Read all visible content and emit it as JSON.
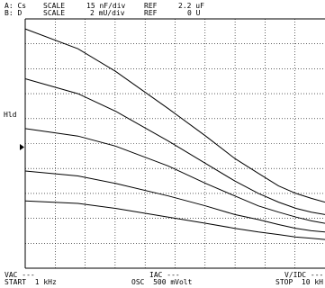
{
  "header": {
    "row_a": {
      "prefix": "A: Cs",
      "scale_label": "SCALE",
      "scale_value": "15 nF/div",
      "ref_label": "REF",
      "ref_value": "2.2 uF"
    },
    "row_b": {
      "prefix": "B: D",
      "scale_label": "SCALE",
      "scale_value": "2 mU/div",
      "ref_label": "REF",
      "ref_value": "0 U"
    }
  },
  "marker": {
    "label": "Hld"
  },
  "footer": {
    "vac": "VAC ---",
    "iac": "IAC ---",
    "vidc": "V/IDC ---",
    "start": "START  1 kHz",
    "osc": "OSC  500 mVolt",
    "stop": "STOP  10 kH"
  },
  "colors": {
    "background": "#ffffff",
    "trace": "#000000",
    "grid": "#000000"
  },
  "chart_data": {
    "type": "line",
    "title": "",
    "xlabel": "",
    "ylabel": "",
    "xlim": [
      1,
      10
    ],
    "x_unit": "kHz",
    "grid": true,
    "grid_style": "dotted",
    "series": [
      {
        "x": [
          1,
          1.5,
          2,
          3,
          4,
          5,
          6,
          7,
          8,
          9,
          10
        ],
        "y": [
          9.6,
          8.8,
          7.9,
          6.4,
          5.3,
          4.4,
          3.8,
          3.3,
          3.0,
          2.8,
          2.65
        ]
      },
      {
        "x": [
          1,
          1.5,
          2,
          3,
          4,
          5,
          6,
          7,
          8,
          9,
          10
        ],
        "y": [
          7.6,
          7.0,
          6.3,
          5.1,
          4.2,
          3.5,
          3.0,
          2.65,
          2.4,
          2.25,
          2.15
        ]
      },
      {
        "x": [
          1,
          1.5,
          2,
          3,
          4,
          5,
          6,
          7,
          8,
          9,
          10
        ],
        "y": [
          5.6,
          5.3,
          4.9,
          4.1,
          3.4,
          2.9,
          2.5,
          2.25,
          2.05,
          1.9,
          1.8
        ]
      },
      {
        "x": [
          1,
          1.5,
          2,
          3,
          4,
          5,
          6,
          7,
          8,
          9,
          10
        ],
        "y": [
          3.9,
          3.7,
          3.4,
          2.9,
          2.5,
          2.15,
          1.95,
          1.75,
          1.6,
          1.5,
          1.45
        ]
      },
      {
        "x": [
          1,
          1.5,
          2,
          3,
          4,
          5,
          6,
          7,
          8,
          9,
          10
        ],
        "y": [
          2.7,
          2.6,
          2.4,
          2.05,
          1.8,
          1.6,
          1.45,
          1.35,
          1.25,
          1.2,
          1.15
        ]
      }
    ]
  }
}
